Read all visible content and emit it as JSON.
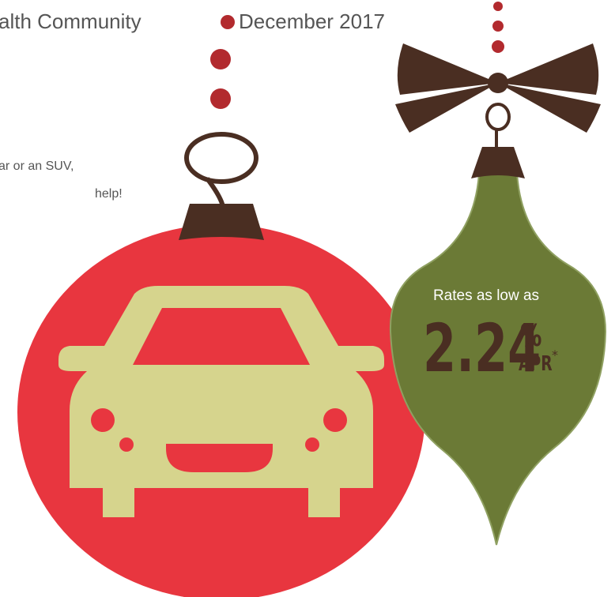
{
  "header": {
    "title_fragment": "alth Community",
    "date": "December 2017"
  },
  "body": {
    "lines": [
      "ar or an SUV,",
      "help!"
    ]
  },
  "offer": {
    "intro": "Rates as low as",
    "rate": "2.24",
    "percent": "%",
    "unit": "APR",
    "footnote": "*"
  }
}
